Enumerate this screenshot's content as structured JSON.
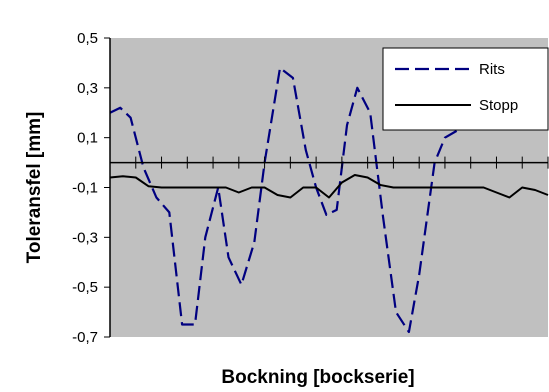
{
  "chart_data": {
    "type": "line",
    "title": "",
    "xlabel": "Bockning [bockserie]",
    "ylabel": "Toleransfel [mm]",
    "ylim": [
      -0.7,
      0.5
    ],
    "xlim": [
      0,
      17
    ],
    "y_ticks": [
      "0,5",
      "0,3",
      "0,1",
      "-0,1",
      "-0,3",
      "-0,5",
      "-0,7"
    ],
    "y_tick_values": [
      0.5,
      0.3,
      0.1,
      -0.1,
      -0.3,
      -0.5,
      -0.7
    ],
    "x_ticks": [
      0,
      1,
      2,
      3,
      4,
      5,
      6,
      7,
      8,
      9,
      10,
      11,
      12,
      13,
      14,
      15,
      16,
      17
    ],
    "grid": false,
    "background_color": "#c0c0c0",
    "legend": {
      "placement": "top-right",
      "entries": [
        "Rits",
        "Stopp"
      ]
    },
    "series": [
      {
        "name": "Rits",
        "color": "#000080",
        "dash": "dashed",
        "x": [
          0,
          0.4,
          0.8,
          1.3,
          1.8,
          2.3,
          2.8,
          3.3,
          3.7,
          4.2,
          4.6,
          5.1,
          5.6,
          6.0,
          6.6,
          7.1,
          7.6,
          8.0,
          8.4,
          8.8,
          9.2,
          9.6,
          10.1,
          10.6,
          11.1,
          11.6,
          12.0,
          12.6,
          13.0,
          13.5
        ],
        "y": [
          0.2,
          0.22,
          0.18,
          -0.02,
          -0.14,
          -0.2,
          -0.65,
          -0.65,
          -0.3,
          -0.1,
          -0.38,
          -0.49,
          -0.32,
          0.0,
          0.38,
          0.34,
          0.05,
          -0.1,
          -0.21,
          -0.19,
          0.15,
          0.3,
          0.2,
          -0.22,
          -0.6,
          -0.68,
          -0.45,
          0.0,
          0.1,
          0.13
        ]
      },
      {
        "name": "Stopp",
        "color": "#000000",
        "dash": "solid",
        "x": [
          0,
          0.5,
          1.0,
          1.5,
          2.0,
          2.5,
          3.0,
          3.5,
          4.0,
          4.5,
          5.0,
          5.5,
          6.0,
          6.5,
          7.0,
          7.5,
          8.0,
          8.5,
          9.0,
          9.5,
          10.0,
          10.5,
          11.0,
          11.5,
          12.0,
          12.5,
          13.0,
          13.5,
          14.0,
          14.5,
          15.0,
          15.5,
          16.0,
          16.5,
          17.0
        ],
        "y": [
          -0.06,
          -0.055,
          -0.06,
          -0.095,
          -0.1,
          -0.1,
          -0.1,
          -0.1,
          -0.1,
          -0.1,
          -0.12,
          -0.1,
          -0.1,
          -0.13,
          -0.14,
          -0.1,
          -0.1,
          -0.14,
          -0.08,
          -0.05,
          -0.06,
          -0.09,
          -0.1,
          -0.1,
          -0.1,
          -0.1,
          -0.1,
          -0.1,
          -0.1,
          -0.1,
          -0.12,
          -0.14,
          -0.1,
          -0.11,
          -0.13
        ]
      }
    ]
  }
}
